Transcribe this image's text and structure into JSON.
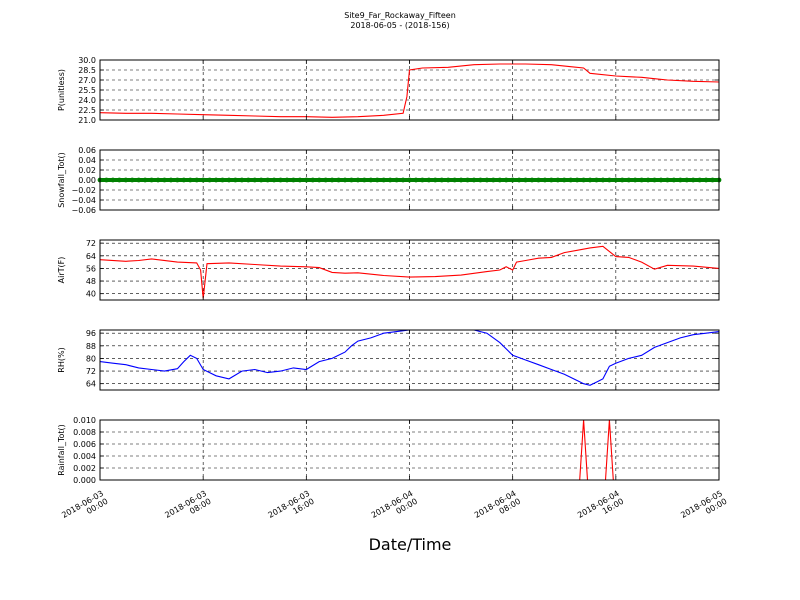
{
  "chart_data": {
    "type": "line",
    "title": "Site9_Far_Rockaway_Fifteen",
    "subtitle": "2018-06-05 - (2018-156)",
    "xlabel": "Date/Time",
    "x_ticks": [
      {
        "t": 0,
        "line1": "2018-06-03",
        "line2": "00:00"
      },
      {
        "t": 8,
        "line1": "2018-06-03",
        "line2": "08:00"
      },
      {
        "t": 16,
        "line1": "2018-06-03",
        "line2": "16:00"
      },
      {
        "t": 24,
        "line1": "2018-06-04",
        "line2": "00:00"
      },
      {
        "t": 32,
        "line1": "2018-06-04",
        "line2": "08:00"
      },
      {
        "t": 40,
        "line1": "2018-06-04",
        "line2": "16:00"
      },
      {
        "t": 48,
        "line1": "2018-06-05",
        "line2": "00:00"
      }
    ],
    "panels": [
      {
        "ylabel": "P(unitless)",
        "ylim": [
          21.0,
          30.0
        ],
        "yticks": [
          "21.0",
          "22.5",
          "24.0",
          "25.5",
          "27.0",
          "28.5",
          "30.0"
        ],
        "grid": true,
        "color": "#ff0000",
        "style": "line",
        "points": [
          [
            0,
            22.1
          ],
          [
            2,
            22.0
          ],
          [
            4,
            22.0
          ],
          [
            6,
            21.9
          ],
          [
            8,
            21.8
          ],
          [
            10,
            21.7
          ],
          [
            12,
            21.6
          ],
          [
            14,
            21.5
          ],
          [
            16,
            21.5
          ],
          [
            18,
            21.4
          ],
          [
            20,
            21.5
          ],
          [
            22,
            21.7
          ],
          [
            23.5,
            22.0
          ],
          [
            23.8,
            24.5
          ],
          [
            24,
            28.5
          ],
          [
            25,
            28.8
          ],
          [
            27,
            28.9
          ],
          [
            29,
            29.3
          ],
          [
            31,
            29.4
          ],
          [
            33,
            29.4
          ],
          [
            35,
            29.3
          ],
          [
            36.5,
            29.0
          ],
          [
            37.5,
            28.8
          ],
          [
            38,
            28.0
          ],
          [
            40,
            27.6
          ],
          [
            41,
            27.5
          ],
          [
            42,
            27.4
          ],
          [
            43,
            27.2
          ],
          [
            44,
            27.0
          ],
          [
            46,
            26.8
          ],
          [
            48,
            26.7
          ]
        ]
      },
      {
        "ylabel": "Snowfall_Tot()",
        "ylim": [
          -0.06,
          0.06
        ],
        "yticks": [
          "−0.06",
          "−0.04",
          "−0.02",
          "0.00",
          "0.02",
          "0.04",
          "0.06"
        ],
        "grid": true,
        "color": "#008000",
        "style": "markers",
        "points": [
          [
            0,
            0
          ],
          [
            48,
            0
          ]
        ]
      },
      {
        "ylabel": "AirT(F)",
        "ylim": [
          36,
          74
        ],
        "yticks": [
          "40",
          "48",
          "56",
          "64",
          "72"
        ],
        "grid": true,
        "color": "#ff0000",
        "style": "line",
        "points": [
          [
            0,
            61.5
          ],
          [
            2,
            60.5
          ],
          [
            3,
            61
          ],
          [
            4,
            62
          ],
          [
            6,
            60
          ],
          [
            7.5,
            59.5
          ],
          [
            7.8,
            55
          ],
          [
            8,
            37
          ],
          [
            8.3,
            59
          ],
          [
            10,
            59.5
          ],
          [
            12,
            58.5
          ],
          [
            14,
            57.5
          ],
          [
            16,
            57
          ],
          [
            17,
            56.5
          ],
          [
            18,
            53.5
          ],
          [
            19,
            53
          ],
          [
            20,
            53.2
          ],
          [
            22,
            51.5
          ],
          [
            24,
            50.5
          ],
          [
            26,
            50.8
          ],
          [
            28,
            51.8
          ],
          [
            30,
            54
          ],
          [
            31,
            55
          ],
          [
            31.5,
            57
          ],
          [
            32,
            55
          ],
          [
            32.3,
            60
          ],
          [
            33,
            61
          ],
          [
            34,
            62.5
          ],
          [
            35,
            63
          ],
          [
            36,
            66
          ],
          [
            37,
            67.5
          ],
          [
            38,
            69
          ],
          [
            39,
            70
          ],
          [
            40,
            63.5
          ],
          [
            41,
            63
          ],
          [
            42,
            60
          ],
          [
            43,
            55.5
          ],
          [
            44,
            58
          ],
          [
            46,
            57.5
          ],
          [
            48,
            56
          ]
        ]
      },
      {
        "ylabel": "RH(%)",
        "ylim": [
          60,
          98
        ],
        "yticks": [
          "64",
          "72",
          "80",
          "88",
          "96"
        ],
        "grid": true,
        "color": "#0000ff",
        "style": "line",
        "points": [
          [
            0,
            78
          ],
          [
            1,
            77
          ],
          [
            2,
            76
          ],
          [
            3,
            74
          ],
          [
            4,
            73
          ],
          [
            5,
            72
          ],
          [
            6,
            73.5
          ],
          [
            6.5,
            78
          ],
          [
            7,
            82
          ],
          [
            7.5,
            80
          ],
          [
            8,
            73
          ],
          [
            9,
            69
          ],
          [
            10,
            67
          ],
          [
            11,
            72
          ],
          [
            12,
            73
          ],
          [
            13,
            71
          ],
          [
            14,
            72
          ],
          [
            15,
            74
          ],
          [
            16,
            73
          ],
          [
            17,
            78
          ],
          [
            18,
            80
          ],
          [
            19,
            84
          ],
          [
            19.5,
            88
          ],
          [
            20,
            91
          ],
          [
            21,
            93
          ],
          [
            22,
            96
          ],
          [
            23,
            97
          ],
          [
            24,
            98
          ],
          [
            29,
            98
          ],
          [
            30,
            96
          ],
          [
            31,
            90
          ],
          [
            32,
            82
          ],
          [
            33,
            79
          ],
          [
            34,
            76
          ],
          [
            35,
            73
          ],
          [
            36,
            70
          ],
          [
            37,
            66
          ],
          [
            37.5,
            64
          ],
          [
            38,
            63
          ],
          [
            38.5,
            65
          ],
          [
            39,
            67
          ],
          [
            39.5,
            75
          ],
          [
            40,
            77
          ],
          [
            41,
            80
          ],
          [
            42,
            82
          ],
          [
            43,
            87
          ],
          [
            44,
            90
          ],
          [
            45,
            93
          ],
          [
            46,
            95
          ],
          [
            47,
            96
          ],
          [
            48,
            97
          ]
        ]
      },
      {
        "ylabel": "Rainfall_Tot()",
        "ylim": [
          0.0,
          0.01
        ],
        "yticks": [
          "0.000",
          "0.002",
          "0.004",
          "0.006",
          "0.008",
          "0.010"
        ],
        "grid": true,
        "color": "#ff0000",
        "style": "line",
        "points": [
          [
            0,
            0
          ],
          [
            37.2,
            0
          ],
          [
            37.5,
            0.01
          ],
          [
            37.8,
            0
          ],
          [
            39.2,
            0
          ],
          [
            39.5,
            0.01
          ],
          [
            39.8,
            0
          ],
          [
            48,
            0
          ]
        ]
      }
    ]
  }
}
